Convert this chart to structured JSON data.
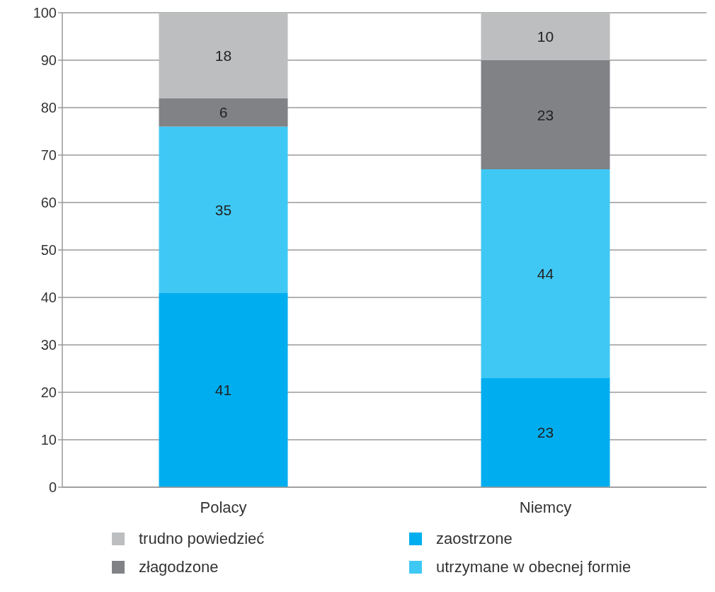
{
  "chart_data": {
    "type": "bar",
    "stacked": true,
    "categories": [
      "Polacy",
      "Niemcy"
    ],
    "series": [
      {
        "name": "zaostrzone",
        "color": "#00aeef",
        "values": [
          41,
          23
        ]
      },
      {
        "name": "utrzymane w obecnej formie",
        "color": "#40c8f4",
        "values": [
          35,
          44
        ]
      },
      {
        "name": "złagodzone",
        "color": "#808285",
        "values": [
          6,
          23
        ]
      },
      {
        "name": "trudno powiedzieć",
        "color": "#bcbec0",
        "values": [
          18,
          10
        ]
      }
    ],
    "ylim": [
      0,
      100
    ],
    "yticks": [
      0,
      10,
      20,
      30,
      40,
      50,
      60,
      70,
      80,
      90,
      100
    ],
    "grid": "y",
    "legend": "bottom",
    "data_labels": true
  }
}
